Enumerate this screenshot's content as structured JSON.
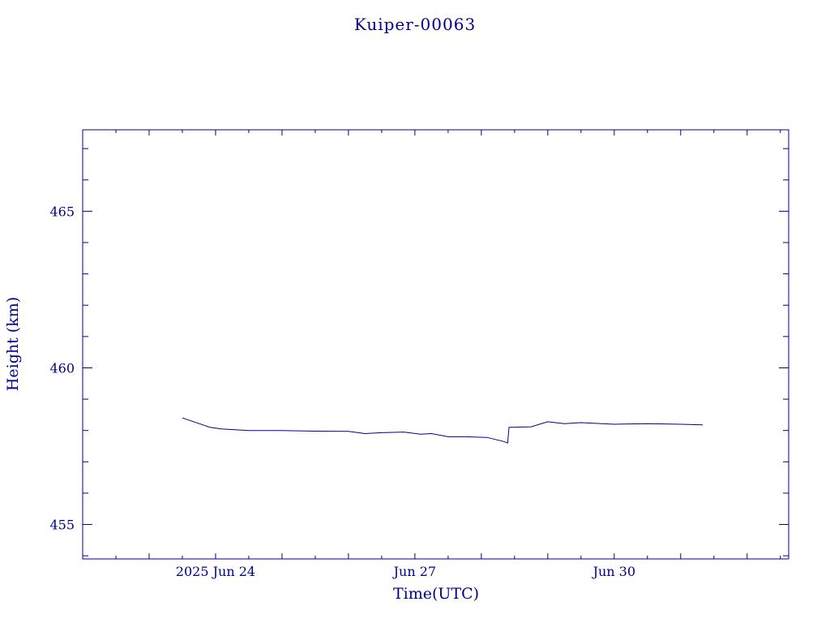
{
  "chart_data": {
    "type": "line",
    "title": "Kuiper-00063",
    "xlabel": "Time(UTC)",
    "ylabel": "Height (km)",
    "x_tick_labels": [
      "2025 Jun 24",
      "Jun 27",
      "Jun 30"
    ],
    "x_tick_dates": [
      "2025-06-24",
      "2025-06-27",
      "2025-06-30"
    ],
    "xlim": [
      "2025-06-22 00:00",
      "2025-07-02 15:00"
    ],
    "y_ticks": [
      455,
      460,
      465
    ],
    "ylim": [
      453.9,
      467.6
    ],
    "grid": false,
    "color": "#00008b",
    "series": [
      {
        "x": [
          "2025-06-23 12:00",
          "2025-06-23 22:00",
          "2025-06-24 02:00",
          "2025-06-24 12:00",
          "2025-06-25 00:00",
          "2025-06-25 12:00",
          "2025-06-26 00:00",
          "2025-06-26 06:00",
          "2025-06-26 12:00",
          "2025-06-26 20:00",
          "2025-06-27 02:00",
          "2025-06-27 06:00",
          "2025-06-27 12:00",
          "2025-06-27 18:00",
          "2025-06-28 02:00",
          "2025-06-28 08:00",
          "2025-06-28 09:30",
          "2025-06-28 10:00",
          "2025-06-28 18:00",
          "2025-06-29 00:00",
          "2025-06-29 06:00",
          "2025-06-29 12:00",
          "2025-06-30 00:00",
          "2025-06-30 12:00",
          "2025-07-01 00:00",
          "2025-07-01 08:00"
        ],
        "y": [
          458.4,
          458.1,
          458.05,
          458.0,
          458.0,
          457.98,
          457.97,
          457.9,
          457.93,
          457.95,
          457.88,
          457.9,
          457.8,
          457.8,
          457.78,
          457.65,
          457.6,
          458.1,
          458.12,
          458.28,
          458.22,
          458.25,
          458.2,
          458.22,
          458.2,
          458.18
        ]
      }
    ]
  }
}
